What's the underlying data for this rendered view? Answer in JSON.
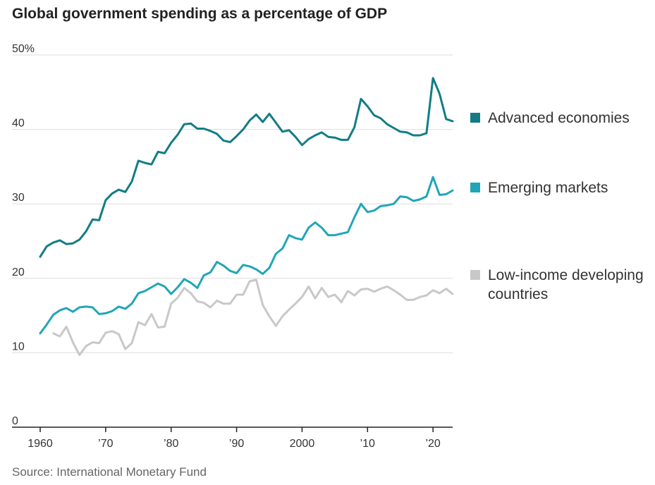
{
  "title": "Global government spending as a percentage of GDP",
  "source": "Source: International Monetary Fund",
  "chart_data": {
    "type": "line",
    "title": "Global government spending as a percentage of GDP",
    "xlabel": "",
    "ylabel": "",
    "xlim": [
      1960,
      2023
    ],
    "ylim": [
      0,
      50
    ],
    "grid": true,
    "legend_position": "right",
    "y_ticks": [
      {
        "value": 50,
        "label": "50%"
      },
      {
        "value": 40,
        "label": "40"
      },
      {
        "value": 30,
        "label": "30"
      },
      {
        "value": 20,
        "label": "20"
      },
      {
        "value": 10,
        "label": "10"
      },
      {
        "value": 0,
        "label": "0"
      }
    ],
    "x_ticks": [
      {
        "value": 1960,
        "label": "1960"
      },
      {
        "value": 1970,
        "label": "’70"
      },
      {
        "value": 1980,
        "label": "’80"
      },
      {
        "value": 1990,
        "label": "’90"
      },
      {
        "value": 2000,
        "label": "2000"
      },
      {
        "value": 2010,
        "label": "’10"
      },
      {
        "value": 2020,
        "label": "’20"
      }
    ],
    "series": [
      {
        "name": "Advanced economies",
        "color": "#137c86",
        "x": [
          1960,
          1961,
          1962,
          1963,
          1964,
          1965,
          1966,
          1967,
          1968,
          1969,
          1970,
          1971,
          1972,
          1973,
          1974,
          1975,
          1976,
          1977,
          1978,
          1979,
          1980,
          1981,
          1982,
          1983,
          1984,
          1985,
          1986,
          1987,
          1988,
          1989,
          1990,
          1991,
          1992,
          1993,
          1994,
          1995,
          1996,
          1997,
          1998,
          1999,
          2000,
          2001,
          2002,
          2003,
          2004,
          2005,
          2006,
          2007,
          2008,
          2009,
          2010,
          2011,
          2012,
          2013,
          2014,
          2015,
          2016,
          2017,
          2018,
          2019,
          2020,
          2021,
          2022,
          2023
        ],
        "values": [
          22.9,
          24.3,
          24.8,
          25.1,
          24.6,
          24.7,
          25.2,
          26.3,
          27.9,
          27.8,
          30.5,
          31.4,
          31.9,
          31.6,
          33.0,
          35.8,
          35.5,
          35.3,
          37.0,
          36.8,
          38.2,
          39.3,
          40.7,
          40.8,
          40.1,
          40.1,
          39.8,
          39.4,
          38.5,
          38.3,
          39.1,
          40.0,
          41.2,
          42.0,
          41.0,
          42.1,
          40.9,
          39.7,
          39.9,
          39.0,
          37.9,
          38.7,
          39.2,
          39.6,
          39.0,
          38.9,
          38.6,
          38.6,
          40.3,
          44.1,
          43.1,
          41.9,
          41.5,
          40.7,
          40.2,
          39.7,
          39.6,
          39.2,
          39.2,
          39.5,
          46.9,
          44.8,
          41.4,
          41.1
        ]
      },
      {
        "name": "Emerging markets",
        "color": "#21a6b7",
        "x": [
          1960,
          1961,
          1962,
          1963,
          1964,
          1965,
          1966,
          1967,
          1968,
          1969,
          1970,
          1971,
          1972,
          1973,
          1974,
          1975,
          1976,
          1977,
          1978,
          1979,
          1980,
          1981,
          1982,
          1983,
          1984,
          1985,
          1986,
          1987,
          1988,
          1989,
          1990,
          1991,
          1992,
          1993,
          1994,
          1995,
          1996,
          1997,
          1998,
          1999,
          2000,
          2001,
          2002,
          2003,
          2004,
          2005,
          2006,
          2007,
          2008,
          2009,
          2010,
          2011,
          2012,
          2013,
          2014,
          2015,
          2016,
          2017,
          2018,
          2019,
          2020,
          2021,
          2022,
          2023
        ],
        "values": [
          12.6,
          13.8,
          15.1,
          15.7,
          16.0,
          15.5,
          16.1,
          16.2,
          16.1,
          15.2,
          15.3,
          15.6,
          16.2,
          15.9,
          16.6,
          18.0,
          18.3,
          18.8,
          19.3,
          18.9,
          17.9,
          18.8,
          19.9,
          19.4,
          18.7,
          20.4,
          20.8,
          22.2,
          21.7,
          21.0,
          20.7,
          21.8,
          21.6,
          21.2,
          20.6,
          21.4,
          23.3,
          24.0,
          25.8,
          25.4,
          25.2,
          26.8,
          27.5,
          26.8,
          25.8,
          25.8,
          26.0,
          26.2,
          28.2,
          30.0,
          28.9,
          29.1,
          29.7,
          29.8,
          30.0,
          31.0,
          30.9,
          30.4,
          30.6,
          31.0,
          33.6,
          31.2,
          31.3,
          31.8
        ]
      },
      {
        "name": "Low-income developing countries",
        "color": "#c8c8c8",
        "x": [
          1962,
          1963,
          1964,
          1965,
          1966,
          1967,
          1968,
          1969,
          1970,
          1971,
          1972,
          1973,
          1974,
          1975,
          1976,
          1977,
          1978,
          1979,
          1980,
          1981,
          1982,
          1983,
          1984,
          1985,
          1986,
          1987,
          1988,
          1989,
          1990,
          1991,
          1992,
          1993,
          1994,
          1995,
          1996,
          1997,
          1998,
          1999,
          2000,
          2001,
          2002,
          2003,
          2004,
          2005,
          2006,
          2007,
          2008,
          2009,
          2010,
          2011,
          2012,
          2013,
          2014,
          2015,
          2016,
          2017,
          2018,
          2019,
          2020,
          2021,
          2022,
          2023
        ],
        "values": [
          12.6,
          12.2,
          13.5,
          11.4,
          9.7,
          10.9,
          11.4,
          11.3,
          12.7,
          12.9,
          12.5,
          10.5,
          11.3,
          14.1,
          13.7,
          15.2,
          13.4,
          13.5,
          16.6,
          17.4,
          18.7,
          18.0,
          16.9,
          16.7,
          16.1,
          17.0,
          16.6,
          16.6,
          17.8,
          17.8,
          19.6,
          19.8,
          16.4,
          14.9,
          13.6,
          14.9,
          15.8,
          16.6,
          17.5,
          18.9,
          17.3,
          18.7,
          17.5,
          17.8,
          16.8,
          18.3,
          17.7,
          18.5,
          18.6,
          18.2,
          18.6,
          18.9,
          18.4,
          17.8,
          17.1,
          17.1,
          17.5,
          17.7,
          18.4,
          18.0,
          18.6,
          17.9
        ]
      }
    ],
    "legend": [
      {
        "label": "Advanced economies",
        "color": "#137c86"
      },
      {
        "label": "Emerging markets",
        "color": "#21a6b7"
      },
      {
        "label": "Low-income developing countries",
        "color": "#c8c8c8"
      }
    ]
  }
}
